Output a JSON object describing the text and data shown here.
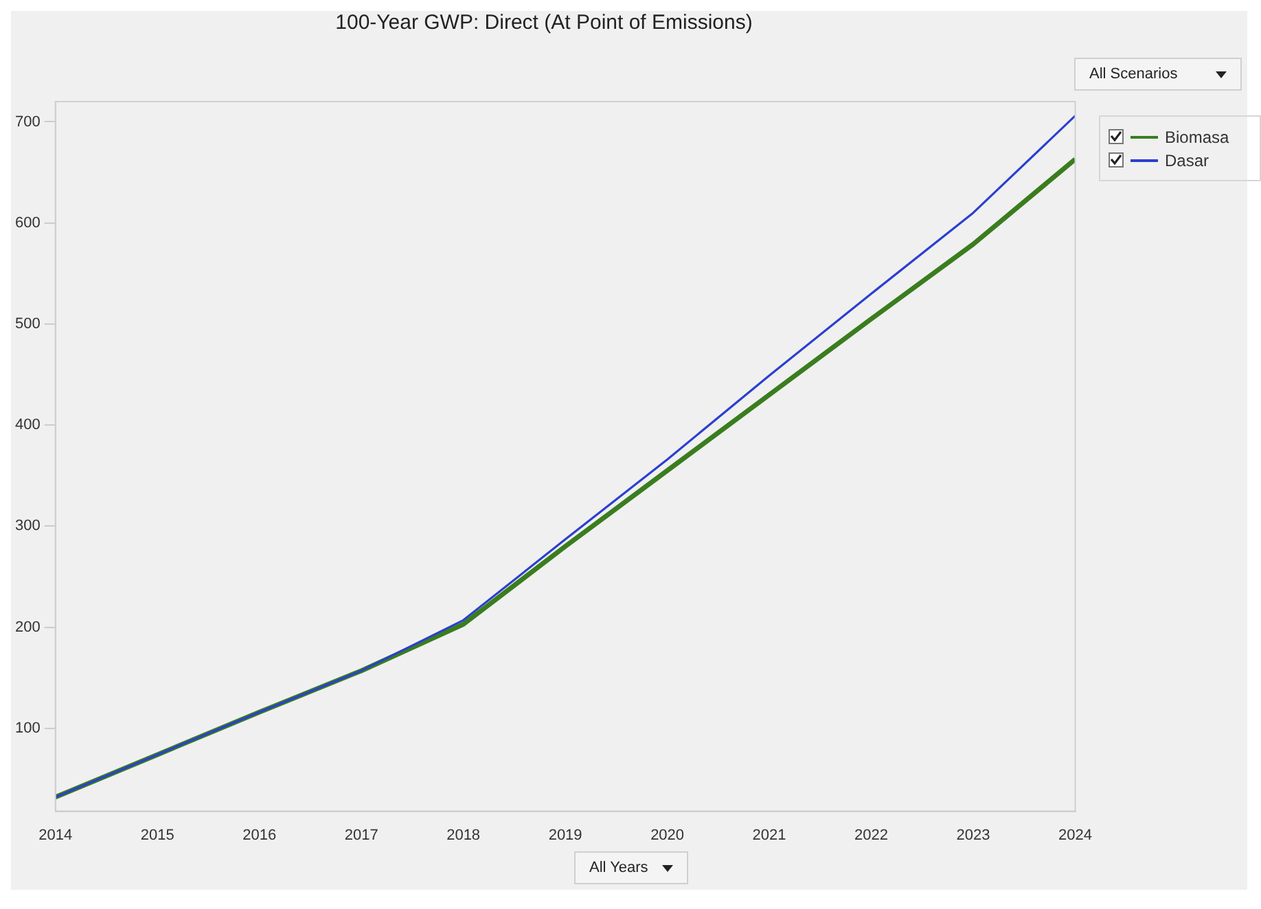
{
  "chart_data": {
    "type": "line",
    "title": "100-Year GWP: Direct (At Point of Emissions)",
    "x": [
      2014,
      2015,
      2016,
      2017,
      2018,
      2019,
      2020,
      2021,
      2022,
      2023,
      2024
    ],
    "series": [
      {
        "name": "Biomasa",
        "color": "#3a7d1e",
        "values": [
          32,
          74,
          116,
          157,
          203,
          280,
          355,
          430,
          505,
          579,
          663
        ]
      },
      {
        "name": "Dasar",
        "color": "#2b3fd0",
        "values": [
          32,
          74,
          116,
          157,
          207,
          287,
          366,
          449,
          530,
          610,
          706
        ]
      }
    ],
    "xlim": [
      2014,
      2024
    ],
    "xticks": [
      2014,
      2015,
      2016,
      2017,
      2018,
      2019,
      2020,
      2021,
      2022,
      2023,
      2024
    ],
    "ylim": [
      18,
      720
    ],
    "yticks": [
      100,
      200,
      300,
      400,
      500,
      600,
      700
    ],
    "grid": false,
    "legend": "top right",
    "marker": "none",
    "line_style": "solid",
    "annotations": [
      "All Scenarios",
      "All Years"
    ]
  }
}
